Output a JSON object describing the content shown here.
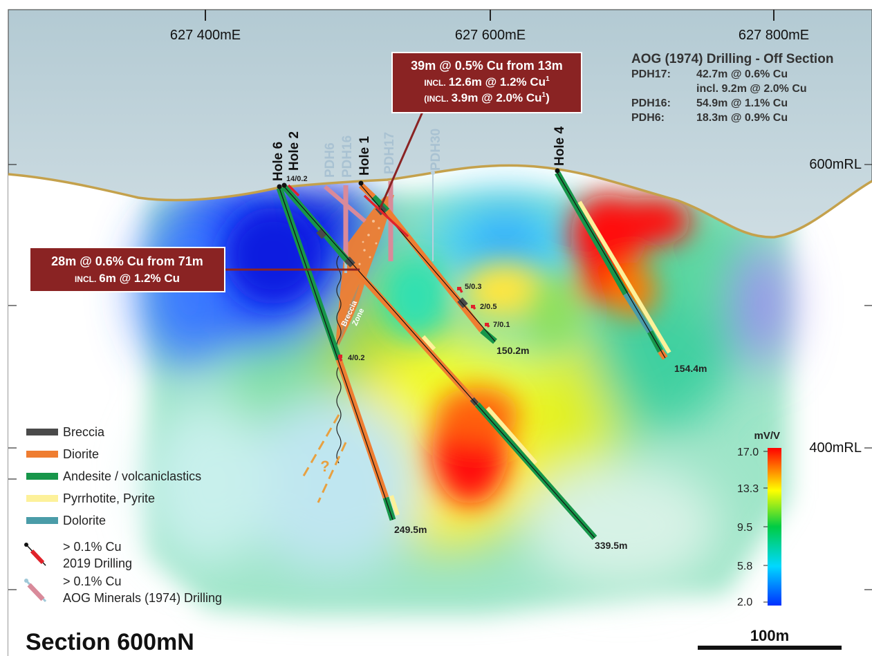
{
  "title": "Section 600mN",
  "scale_bar_label": "100m",
  "eastings": [
    {
      "key": "e400",
      "label": "627 400mE"
    },
    {
      "key": "e600",
      "label": "627 600mE"
    },
    {
      "key": "e800",
      "label": "627 800mE"
    }
  ],
  "rl_labels": [
    {
      "key": "rl600",
      "label": "600mRL"
    },
    {
      "key": "rl400",
      "label": "400mRL"
    }
  ],
  "aog_summary": {
    "heading": "AOG (1974) Drilling - Off Section",
    "rows": [
      {
        "hole": "PDH17:",
        "result": "42.7m @ 0.6% Cu"
      },
      {
        "hole": "",
        "result": "incl. 9.2m @ 2.0% Cu"
      },
      {
        "hole": "PDH16:",
        "result": "54.9m @ 1.1% Cu"
      },
      {
        "hole": "PDH6:",
        "result": "18.3m @ 0.9% Cu"
      }
    ]
  },
  "callouts": {
    "upper": {
      "line1": "39m @ 0.5% Cu from 13m",
      "line2_prefix": "INCL.",
      "line2_text": "12.6m @ 1.2% Cu",
      "line2_sup": "1",
      "line3_prefix": "(INCL.",
      "line3_text": "3.9m @ 2.0% Cu",
      "line3_sup": "1",
      "line3_suffix": ")"
    },
    "lower": {
      "line1": "28m @ 0.6% Cu from 71m",
      "line2_prefix": "INCL.",
      "line2_text": "6m @ 1.2% Cu"
    }
  },
  "holes_2019": [
    {
      "key": "hole6",
      "name": "Hole 6",
      "depth": "249.5m"
    },
    {
      "key": "hole2",
      "name": "Hole 2",
      "depth": "339.5m"
    },
    {
      "key": "hole1",
      "name": "Hole 1",
      "depth": "150.2m"
    },
    {
      "key": "hole4",
      "name": "Hole 4",
      "depth": "154.4m"
    }
  ],
  "holes_1974": [
    {
      "key": "pdh6",
      "name": "PDH6"
    },
    {
      "key": "pdh16",
      "name": "PDH16"
    },
    {
      "key": "pdh17",
      "name": "PDH17"
    },
    {
      "key": "pdh30",
      "name": "PDH30"
    }
  ],
  "intercept_labels": [
    {
      "key": "i14",
      "text": "14/0.2"
    },
    {
      "key": "i5",
      "text": "5/0.3"
    },
    {
      "key": "i2",
      "text": "2/0.5"
    },
    {
      "key": "i7",
      "text": "7/0.1"
    },
    {
      "key": "i4",
      "text": "4/0.2"
    }
  ],
  "breccia_zone_label": [
    "Breccia",
    "Zone"
  ],
  "unknown_marker": "?",
  "legend": {
    "items": [
      {
        "key": "breccia",
        "label": "Breccia",
        "color": "#4a4a4a"
      },
      {
        "key": "diorite",
        "label": "Diorite",
        "color": "#ef7d31"
      },
      {
        "key": "andesite",
        "label": "Andesite / volcaniclastics",
        "color": "#17964a"
      },
      {
        "key": "pyrrhotite",
        "label": "Pyrrhotite, Pyrite",
        "color": "#fdf19a"
      },
      {
        "key": "dolorite",
        "label": "Dolorite",
        "color": "#4a9ca8"
      }
    ],
    "drill_2019": {
      "line1": "> 0.1% Cu",
      "line2": "2019 Drilling"
    },
    "drill_1974": {
      "line1": "> 0.1% Cu",
      "line2": "AOG Minerals (1974) Drilling"
    }
  },
  "colorbar": {
    "unit": "mV/V",
    "ticks": [
      "17.0",
      "13.3",
      "9.5",
      "5.8",
      "2.0"
    ],
    "colors": [
      "#ff0000",
      "#ffff00",
      "#00cc44",
      "#00d8ff",
      "#0030ff"
    ]
  },
  "colors": {
    "callout_bg": "#8a2323",
    "topography": "#c4a14c",
    "sky_top": "#b4cbd4",
    "hole_label_1974": "#a9c2d2"
  }
}
